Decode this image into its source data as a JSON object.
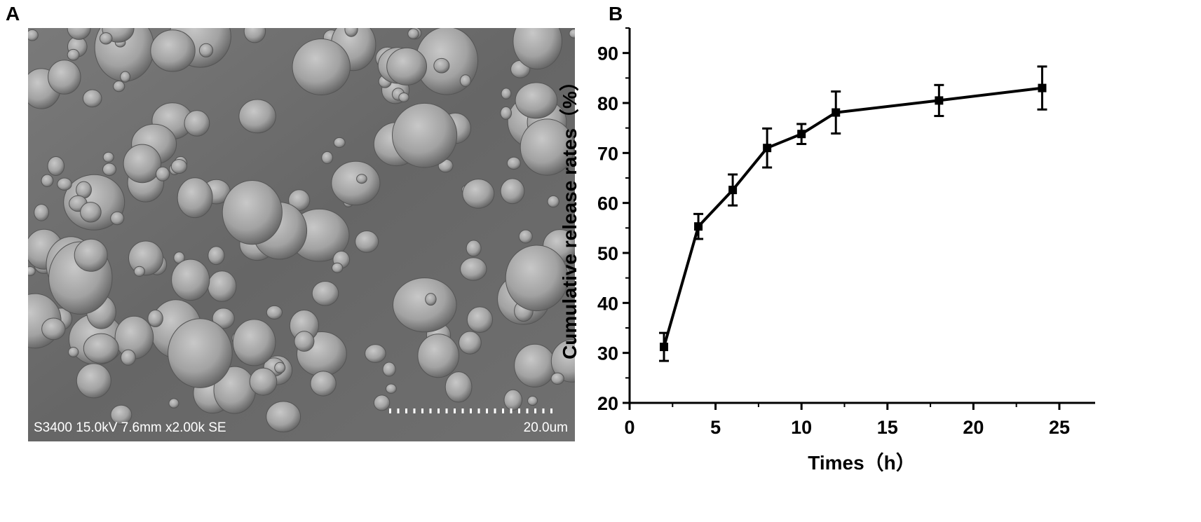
{
  "panels": {
    "a": "A",
    "b": "B"
  },
  "sem": {
    "info_text": "S3400 15.0kV 7.6mm x2.00k SE",
    "scale_text": "20.0um"
  },
  "chart_data": {
    "type": "line",
    "xlabel": "Times（h）",
    "ylabel": "Cumulative release rates（%）",
    "xlim": [
      0,
      27
    ],
    "ylim": [
      20,
      95
    ],
    "xticks": [
      0,
      5,
      10,
      15,
      20,
      25
    ],
    "yticks": [
      20,
      30,
      40,
      50,
      60,
      70,
      80,
      90
    ],
    "grid": false,
    "marker": "square",
    "series": [
      {
        "x": [
          2,
          4,
          6,
          8,
          10,
          12,
          18,
          24
        ],
        "y": [
          31.2,
          55.3,
          62.6,
          71.0,
          73.8,
          78.1,
          80.5,
          83.0
        ],
        "error": [
          2.8,
          2.5,
          3.1,
          3.9,
          2.0,
          4.2,
          3.1,
          4.3
        ]
      }
    ]
  }
}
